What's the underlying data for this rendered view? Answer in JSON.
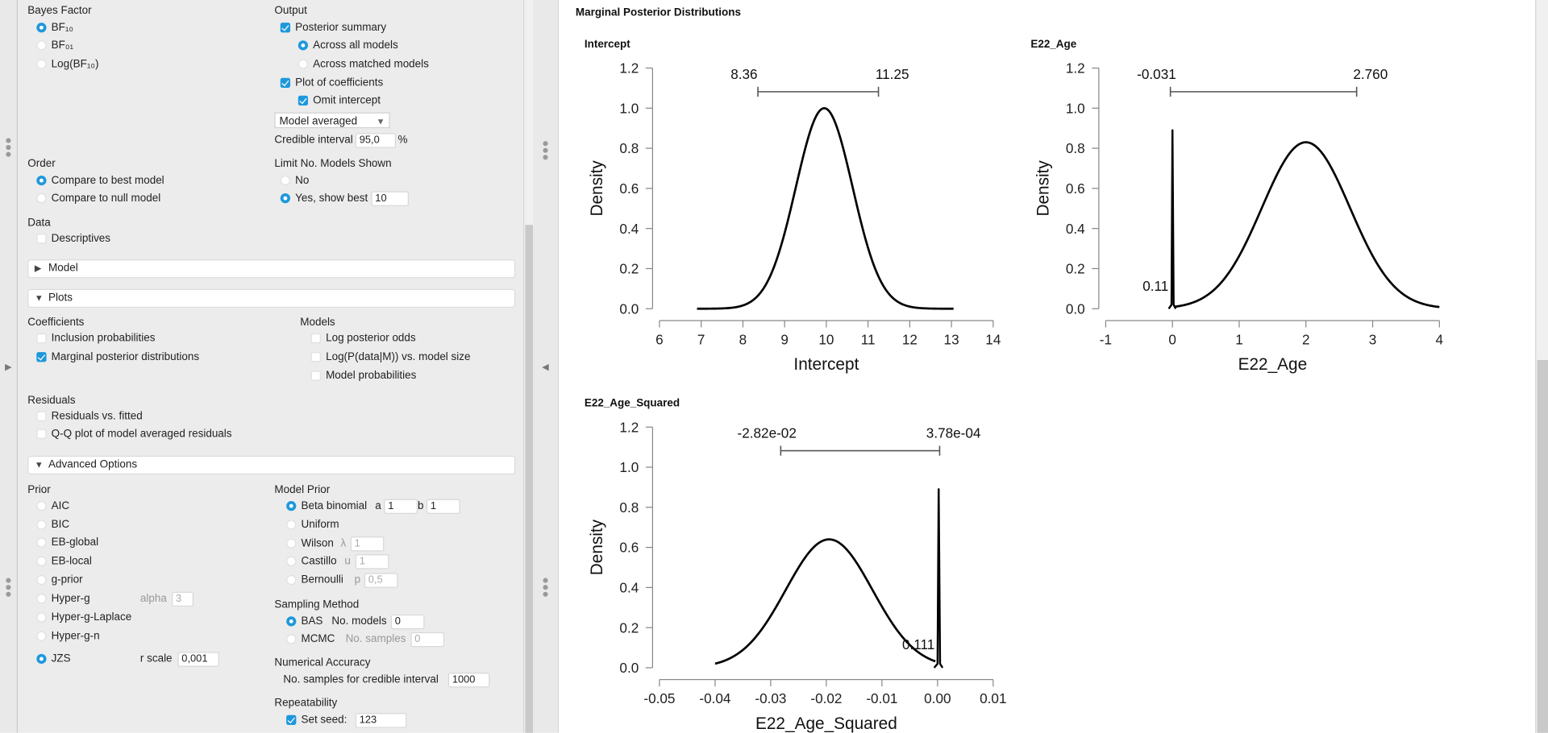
{
  "left_panel": {
    "bayes_factor": {
      "title": "Bayes Factor",
      "options": [
        "BF₁₀",
        "BF₀₁",
        "Log(BF₁₀)"
      ],
      "selected": 0
    },
    "output": {
      "title": "Output",
      "posterior_summary": "Posterior summary",
      "across_all": "Across all models",
      "across_matched": "Across matched models",
      "plot_coefficients": "Plot of coefficients",
      "omit_intercept": "Omit intercept",
      "select_value": "Model averaged",
      "credible_label": "Credible interval",
      "credible_value": "95,0",
      "percent": "%"
    },
    "order": {
      "title": "Order",
      "best": "Compare to best model",
      "null": "Compare to null model"
    },
    "limit": {
      "title": "Limit No. Models Shown",
      "no": "No",
      "yes": "Yes, show best",
      "value": "10"
    },
    "data": {
      "title": "Data",
      "descriptives": "Descriptives"
    },
    "sections": {
      "model": "Model",
      "plots": "Plots",
      "advanced": "Advanced Options"
    },
    "plots": {
      "coefficients": "Coefficients",
      "inclusion": "Inclusion probabilities",
      "marginal": "Marginal posterior distributions",
      "models": "Models",
      "log_posterior_odds": "Log posterior odds",
      "log_p_data": "Log(P(data|M)) vs. model size",
      "model_probs": "Model probabilities",
      "residuals": "Residuals",
      "res_vs_fitted": "Residuals vs. fitted",
      "qq": "Q-Q plot of model averaged residuals"
    },
    "prior": {
      "title": "Prior",
      "options": [
        "AIC",
        "BIC",
        "EB-global",
        "EB-local",
        "g-prior",
        "Hyper-g",
        "Hyper-g-Laplace",
        "Hyper-g-n",
        "JZS"
      ],
      "alpha_label": "alpha",
      "alpha_value": "3",
      "rscale_label": "r scale",
      "rscale_value": "0,001"
    },
    "model_prior": {
      "title": "Model Prior",
      "beta": "Beta binomial",
      "a_label": "a",
      "a_value": "1",
      "b_label": "b",
      "b_value": "1",
      "uniform": "Uniform",
      "wilson": "Wilson",
      "lambda_label": "λ",
      "lambda_value": "1",
      "castillo": "Castillo",
      "u_label": "u",
      "u_value": "1",
      "bernoulli": "Bernoulli",
      "p_label": "p",
      "p_value": "0,5"
    },
    "sampling": {
      "title": "Sampling Method",
      "bas": "BAS",
      "no_models_label": "No. models",
      "no_models_value": "0",
      "mcmc": "MCMC",
      "no_samples_label": "No. samples",
      "no_samples_value": "0"
    },
    "accuracy": {
      "title": "Numerical Accuracy",
      "label": "No. samples for credible interval",
      "value": "1000"
    },
    "repeat": {
      "title": "Repeatability",
      "seed_label": "Set seed:",
      "seed_value": "123"
    }
  },
  "results": {
    "heading": "Marginal Posterior Distributions"
  },
  "chart_data": [
    {
      "type": "line",
      "title": "Intercept",
      "xlabel": "Intercept",
      "ylabel": "Density",
      "xlim": [
        6,
        14
      ],
      "xticks": [
        "6",
        "7",
        "8",
        "9",
        "10",
        "11",
        "12",
        "13",
        "14"
      ],
      "ylim": [
        0,
        1.2
      ],
      "yticks": [
        "0.0",
        "0.2",
        "0.4",
        "0.6",
        "0.8",
        "1.0",
        "1.2"
      ],
      "ci": {
        "lower": 8.36,
        "upper": 11.25,
        "lower_label": "8.36",
        "upper_label": "11.25"
      },
      "density": {
        "mean": 9.95,
        "sd": 0.68,
        "peak": 1.0,
        "from": 6.9,
        "to": 13.05
      },
      "spike": null
    },
    {
      "type": "line",
      "title": "E22_Age",
      "xlabel": "E22_Age",
      "ylabel": "Density",
      "xlim": [
        -1,
        4
      ],
      "xticks": [
        "-1",
        "0",
        "1",
        "2",
        "3",
        "4"
      ],
      "ylim": [
        0,
        1.2
      ],
      "yticks": [
        "0.0",
        "0.2",
        "0.4",
        "0.6",
        "0.8",
        "1.0",
        "1.2"
      ],
      "ci": {
        "lower": -0.031,
        "upper": 2.76,
        "lower_label": "-0.031",
        "upper_label": "2.760"
      },
      "density": {
        "mean": 2.0,
        "sd": 0.66,
        "peak": 0.83,
        "from": 0.04,
        "to": 4.0
      },
      "spike": {
        "at": 0.0,
        "height": 0.89,
        "half_width": 0.035,
        "label": "0.11",
        "label_value": 0.11
      }
    },
    {
      "type": "line",
      "title": "E22_Age_Squared",
      "xlabel": "E22_Age_Squared",
      "ylabel": "Density",
      "xlim": [
        -0.05,
        0.01
      ],
      "xticks": [
        "-0.05",
        "-0.04",
        "-0.03",
        "-0.02",
        "-0.01",
        "0.00",
        "0.01"
      ],
      "ylim": [
        0,
        1.2
      ],
      "yticks": [
        "0.0",
        "0.2",
        "0.4",
        "0.6",
        "0.8",
        "1.0",
        "1.2"
      ],
      "ci": {
        "lower": -0.0282,
        "upper": 0.000378,
        "lower_label": "-2.82e-02",
        "upper_label": "3.78e-04"
      },
      "density": {
        "mean": -0.0195,
        "sd": 0.0078,
        "peak": 0.64,
        "from": -0.04,
        "to": -0.0004
      },
      "spike": {
        "at": 0.0002,
        "height": 0.89,
        "half_width": 0.0005,
        "label": "0.111",
        "label_value": 0.111
      }
    }
  ]
}
